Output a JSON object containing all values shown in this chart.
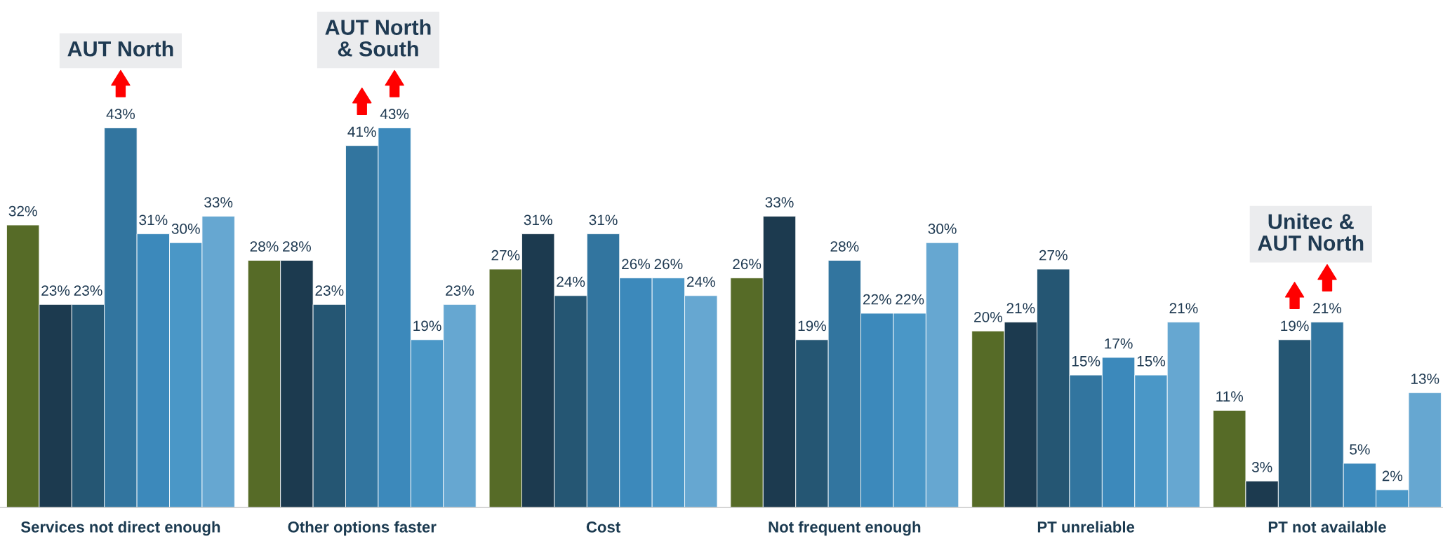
{
  "chart_data": {
    "type": "bar",
    "categories": [
      "Services not direct enough",
      "Other options faster",
      "Cost",
      "Not frequent enough",
      "PT unreliable",
      "PT not available"
    ],
    "series": [
      {
        "color": "#566b27",
        "values": [
          32,
          28,
          27,
          26,
          20,
          11
        ],
        "value_labels": [
          "32%",
          "28%",
          "27%",
          "26%",
          "20%",
          "11%"
        ]
      },
      {
        "color": "#1c3a4f",
        "values": [
          23,
          28,
          31,
          33,
          21,
          3
        ],
        "value_labels": [
          "23%",
          "28%",
          "31%",
          "33%",
          "21%",
          "3%"
        ]
      },
      {
        "color": "#255673",
        "values": [
          23,
          23,
          24,
          19,
          27,
          19
        ],
        "value_labels": [
          "23%",
          "23%",
          "24%",
          "19%",
          "27%",
          "19%"
        ]
      },
      {
        "color": "#32759f",
        "values": [
          43,
          41,
          31,
          28,
          15,
          21
        ],
        "value_labels": [
          "43%",
          "41%",
          "31%",
          "28%",
          "15%",
          "21%"
        ]
      },
      {
        "color": "#3c89bb",
        "values": [
          31,
          43,
          26,
          22,
          17,
          5
        ],
        "value_labels": [
          "31%",
          "43%",
          "26%",
          "22%",
          "17%",
          "5%"
        ]
      },
      {
        "color": "#4a97c7",
        "values": [
          30,
          19,
          26,
          22,
          15,
          2
        ],
        "value_labels": [
          "30%",
          "19%",
          "26%",
          "22%",
          "15%",
          "2%"
        ]
      },
      {
        "color": "#66a7d1",
        "values": [
          33,
          23,
          24,
          30,
          21,
          13
        ],
        "value_labels": [
          "33%",
          "23%",
          "24%",
          "30%",
          "21%",
          "13%"
        ]
      }
    ],
    "annotations": [
      "AUT North",
      "AUT North\n& South",
      "Unitec &\nAUT North"
    ]
  }
}
